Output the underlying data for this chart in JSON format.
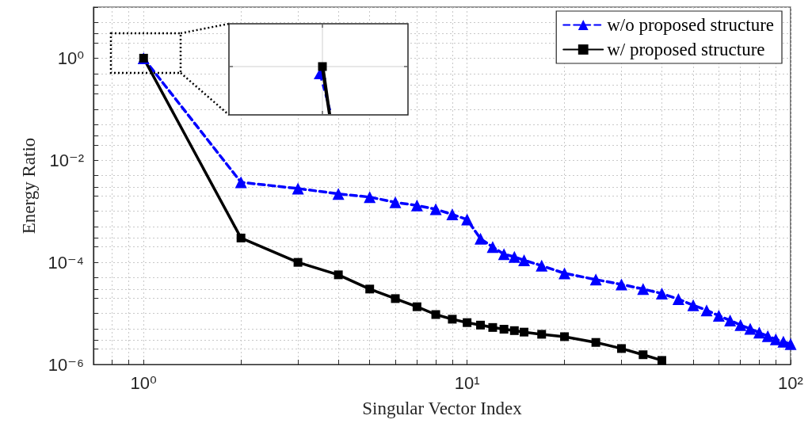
{
  "chart_data": {
    "type": "line",
    "xlabel": "Singular Vector Index",
    "ylabel": "Energy Ratio",
    "log": "xy",
    "grid": true,
    "legend": "top right",
    "xlim": [
      0.7,
      100
    ],
    "ylim": [
      1e-06,
      10
    ],
    "xticks": [
      {
        "value": 0.7,
        "label": null
      },
      {
        "value": 0.8,
        "label": null
      },
      {
        "value": 0.9,
        "label": null
      },
      {
        "value": 1,
        "label": "10⁰"
      },
      {
        "value": 2,
        "label": null
      },
      {
        "value": 3,
        "label": null
      },
      {
        "value": 4,
        "label": null
      },
      {
        "value": 5,
        "label": null
      },
      {
        "value": 6,
        "label": null
      },
      {
        "value": 7,
        "label": null
      },
      {
        "value": 8,
        "label": null
      },
      {
        "value": 9,
        "label": null
      },
      {
        "value": 10,
        "label": "10¹"
      },
      {
        "value": 20,
        "label": null
      },
      {
        "value": 30,
        "label": null
      },
      {
        "value": 40,
        "label": null
      },
      {
        "value": 50,
        "label": null
      },
      {
        "value": 60,
        "label": null
      },
      {
        "value": 70,
        "label": null
      },
      {
        "value": 80,
        "label": null
      },
      {
        "value": 90,
        "label": null
      },
      {
        "value": 100,
        "label": "10²"
      }
    ],
    "yticks": [
      {
        "value": 1e-06,
        "label": "10⁻⁶"
      },
      {
        "value": 2e-06,
        "label": null
      },
      {
        "value": 3e-06,
        "label": null
      },
      {
        "value": 5e-06,
        "label": null
      },
      {
        "value": 1e-05,
        "label": null
      },
      {
        "value": 2e-05,
        "label": null
      },
      {
        "value": 3e-05,
        "label": null
      },
      {
        "value": 5e-05,
        "label": null
      },
      {
        "value": 0.0001,
        "label": "10⁻⁴"
      },
      {
        "value": 0.0002,
        "label": null
      },
      {
        "value": 0.0003,
        "label": null
      },
      {
        "value": 0.0005,
        "label": null
      },
      {
        "value": 0.001,
        "label": null
      },
      {
        "value": 0.002,
        "label": null
      },
      {
        "value": 0.003,
        "label": null
      },
      {
        "value": 0.005,
        "label": null
      },
      {
        "value": 0.01,
        "label": "10⁻²"
      },
      {
        "value": 0.02,
        "label": null
      },
      {
        "value": 0.03,
        "label": null
      },
      {
        "value": 0.05,
        "label": null
      },
      {
        "value": 0.1,
        "label": null
      },
      {
        "value": 0.2,
        "label": null
      },
      {
        "value": 0.3,
        "label": null
      },
      {
        "value": 0.5,
        "label": null
      },
      {
        "value": 1,
        "label": "10⁰"
      },
      {
        "value": 2,
        "label": null
      },
      {
        "value": 3,
        "label": null
      },
      {
        "value": 5,
        "label": null
      },
      {
        "value": 10,
        "label": null
      }
    ],
    "series": [
      {
        "name": "w/o proposed structure",
        "color": "#0000ff",
        "marker": "triangle",
        "line_style": "dashed",
        "x": [
          1,
          2,
          3,
          4,
          5,
          6,
          7,
          8,
          9,
          10,
          11,
          12,
          13,
          14,
          15,
          17,
          20,
          25,
          30,
          35,
          40,
          45,
          50,
          55,
          60,
          65,
          70,
          75,
          80,
          85,
          90,
          95,
          100
        ],
        "values": [
          0.996,
          0.0037,
          0.0028,
          0.0022,
          0.0019,
          0.0015,
          0.0013,
          0.0011,
          0.00087,
          0.00069,
          0.00029,
          0.0002,
          0.000145,
          0.000128,
          0.00011,
          8.6e-05,
          6.1e-05,
          4.6e-05,
          3.7e-05,
          3e-05,
          2.45e-05,
          1.9e-05,
          1.45e-05,
          1.15e-05,
          9e-06,
          7.3e-06,
          5.9e-06,
          5e-06,
          4.2e-06,
          3.6e-06,
          3.1e-06,
          2.8e-06,
          2.5e-06
        ]
      },
      {
        "name": "w/ proposed structure",
        "color": "#000000",
        "marker": "square",
        "line_style": "solid",
        "x": [
          1,
          2,
          3,
          4,
          5,
          6,
          7,
          8,
          9,
          10,
          11,
          12,
          13,
          14,
          15,
          17,
          20,
          25,
          30,
          35,
          40
        ],
        "values": [
          1,
          0.0003,
          0.0001,
          5.7e-05,
          3e-05,
          1.95e-05,
          1.35e-05,
          9.5e-06,
          7.7e-06,
          6.6e-06,
          5.9e-06,
          5.3e-06,
          4.9e-06,
          4.6e-06,
          4.3e-06,
          3.9e-06,
          3.5e-06,
          2.7e-06,
          2.05e-06,
          1.55e-06,
          1.2e-06
        ]
      }
    ]
  }
}
